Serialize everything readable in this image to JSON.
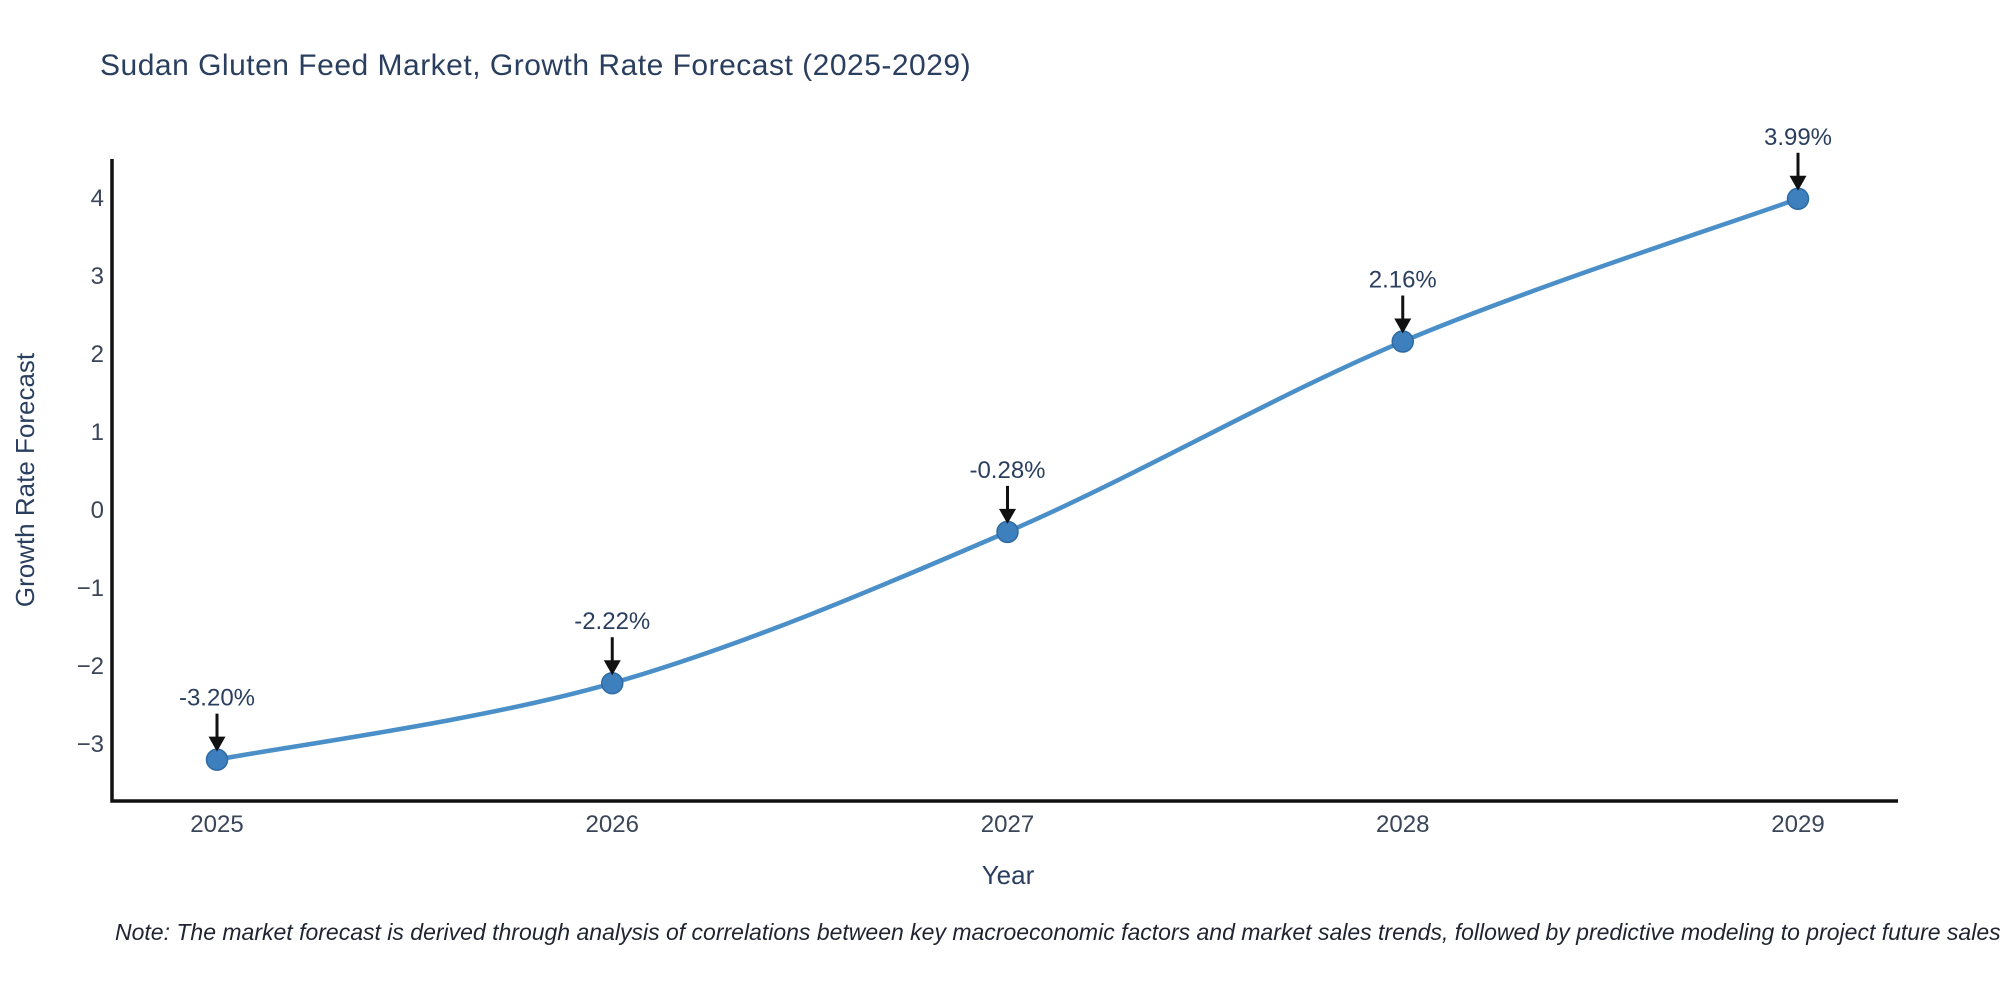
{
  "page": {
    "background": "#ffffff",
    "note": "Note: The market forecast is derived through analysis of correlations between key macroeconomic factors and market sales trends, followed by predictive modeling to project future sales"
  },
  "chart_data": {
    "type": "line",
    "title": "Sudan Gluten Feed Market, Growth Rate Forecast (2025-2029)",
    "xlabel": "Year",
    "ylabel": "Growth Rate Forecast",
    "x": [
      2025,
      2026,
      2027,
      2028,
      2029
    ],
    "values": [
      -3.2,
      -2.22,
      -0.28,
      2.16,
      3.99
    ],
    "point_labels": [
      "-3.20%",
      "-2.22%",
      "-0.28%",
      "2.16%",
      "3.99%"
    ],
    "series_name": "Growth Rate Forecast",
    "yticks": [
      4,
      3,
      2,
      1,
      0,
      -1,
      -2,
      -3
    ],
    "ylim": [
      -3.73,
      4.5
    ],
    "line_shape": "spline",
    "grid": false,
    "legend": "none",
    "annotations": "each point labeled with percent value and black down arrow",
    "colors": {
      "line": "#4a8fc7",
      "marker_fill": "#3d80bd",
      "marker_edge": "#2e6aa3",
      "arrow": "#111111",
      "title_text": "#2a3f5f",
      "tick_text": "#3a4558",
      "note_text": "#1f2430",
      "axis_line": "#111111"
    }
  }
}
